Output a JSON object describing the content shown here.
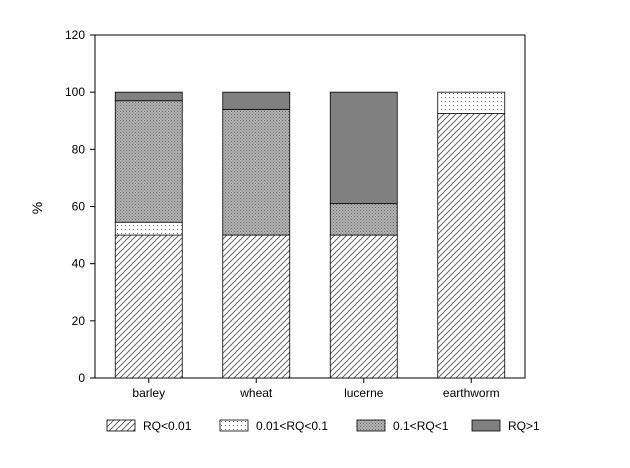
{
  "chart_data": {
    "type": "bar",
    "stacked": true,
    "categories": [
      "barley",
      "wheat",
      "lucerne",
      "earthworm"
    ],
    "series": [
      {
        "name": "RQ<0.01",
        "values": [
          50,
          50,
          50,
          92.5
        ],
        "pattern": "diagonal-hatch",
        "color": "#ffffff"
      },
      {
        "name": "0.01<RQ<0.1",
        "values": [
          4.5,
          0,
          0,
          7.5
        ],
        "pattern": "dots",
        "color": "#ffffff"
      },
      {
        "name": "0.1<RQ<1",
        "values": [
          42.5,
          44,
          11,
          0
        ],
        "pattern": "crosshatch",
        "color": "#9a9a9a"
      },
      {
        "name": "RQ>1",
        "values": [
          3,
          6,
          39,
          0
        ],
        "pattern": "solid",
        "color": "#808080"
      }
    ],
    "title": "",
    "xlabel": "",
    "ylabel": "%",
    "ylim": [
      0,
      120
    ],
    "yticks": [
      0,
      20,
      40,
      60,
      80,
      100,
      120
    ],
    "grid": false,
    "legend_position": "bottom"
  }
}
